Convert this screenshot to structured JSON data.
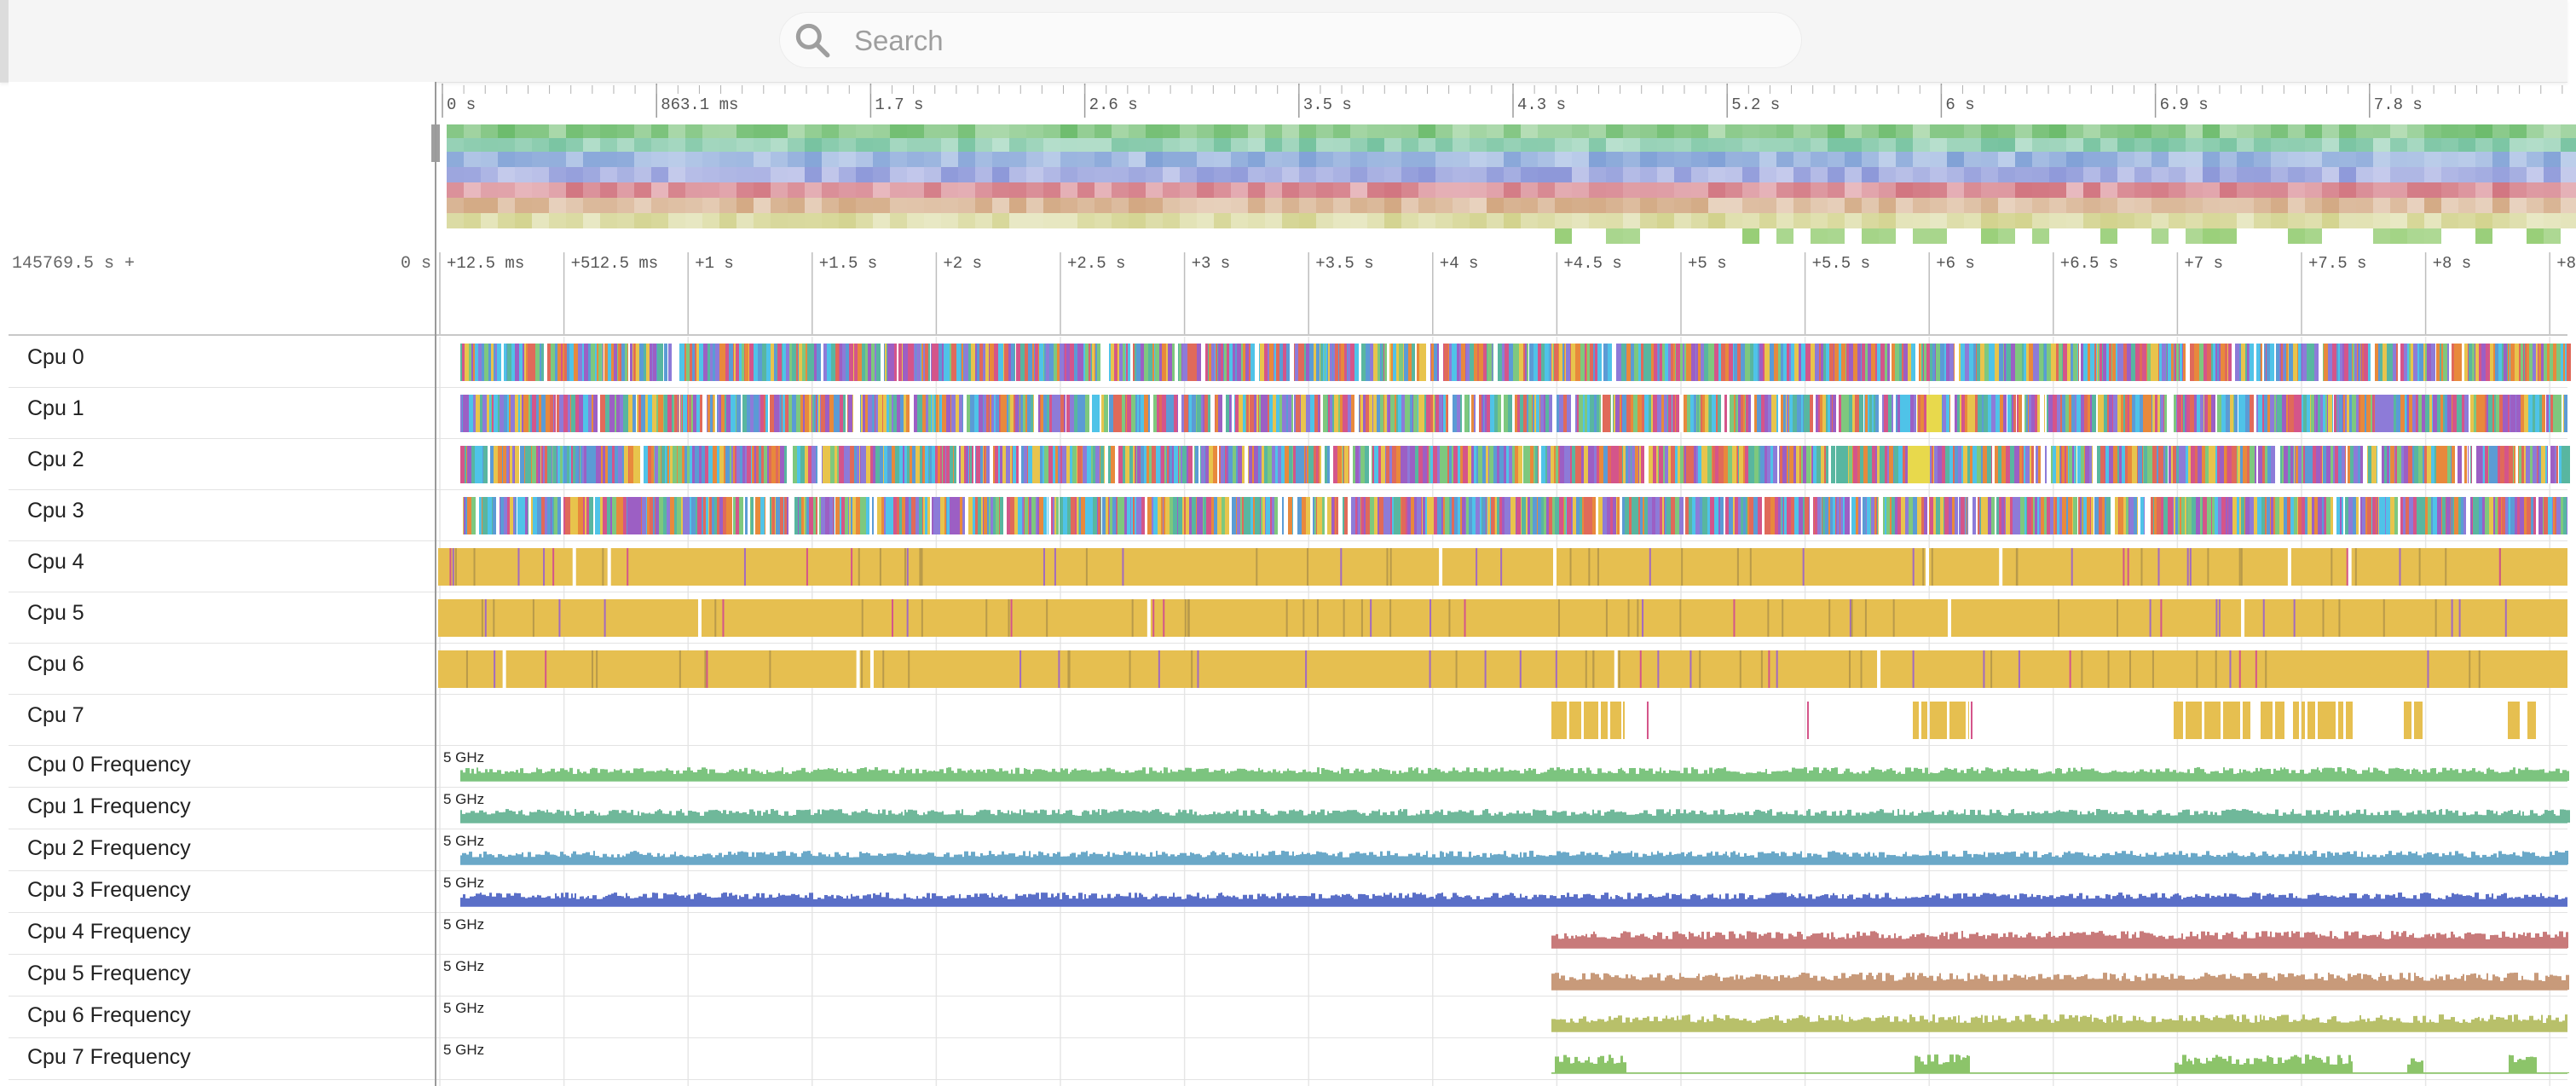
{
  "search": {
    "placeholder": "Search"
  },
  "overview": {
    "ticks": [
      "0 s",
      "863.1 ms",
      "1.7 s",
      "2.6 s",
      "3.5 s",
      "4.3 s",
      "5.2 s",
      "6 s",
      "6.9 s",
      "7.8 s"
    ]
  },
  "timeline": {
    "base_label": "145769.5 s +",
    "offset_label": "0 s",
    "ticks": [
      "+12.5 ms",
      "+512.5 ms",
      "+1 s",
      "+1.5 s",
      "+2 s",
      "+2.5 s",
      "+3 s",
      "+3.5 s",
      "+4 s",
      "+4.5 s",
      "+5 s",
      "+5.5 s",
      "+6 s",
      "+6.5 s",
      "+7 s",
      "+7.5 s",
      "+8 s",
      "+8"
    ]
  },
  "tracks": {
    "cpus": [
      {
        "label": "Cpu 0"
      },
      {
        "label": "Cpu 1"
      },
      {
        "label": "Cpu 2"
      },
      {
        "label": "Cpu 3"
      },
      {
        "label": "Cpu 4"
      },
      {
        "label": "Cpu 5"
      },
      {
        "label": "Cpu 6"
      },
      {
        "label": "Cpu 7"
      }
    ],
    "frequencies": [
      {
        "label": "Cpu 0 Frequency",
        "max": "5 GHz",
        "color": "#7cc47f"
      },
      {
        "label": "Cpu 1 Frequency",
        "max": "5 GHz",
        "color": "#6fb89a"
      },
      {
        "label": "Cpu 2 Frequency",
        "max": "5 GHz",
        "color": "#6aa8c8"
      },
      {
        "label": "Cpu 3 Frequency",
        "max": "5 GHz",
        "color": "#5a6fc8"
      },
      {
        "label": "Cpu 4 Frequency",
        "max": "5 GHz",
        "color": "#c87a7a"
      },
      {
        "label": "Cpu 5 Frequency",
        "max": "5 GHz",
        "color": "#c89a7a"
      },
      {
        "label": "Cpu 6 Frequency",
        "max": "5 GHz",
        "color": "#b8c06a"
      },
      {
        "label": "Cpu 7 Frequency",
        "max": "5 GHz",
        "color": "#8cc46a"
      }
    ]
  },
  "colors": {
    "busy_cpu": "#e6bf50",
    "slice_palette": [
      "#4fc3e8",
      "#5b9bd5",
      "#9c5fc4",
      "#d4558a",
      "#e06a5a",
      "#7ec87e",
      "#e8c44c",
      "#58b6a0",
      "#8d7bd8",
      "#e8893c"
    ]
  }
}
